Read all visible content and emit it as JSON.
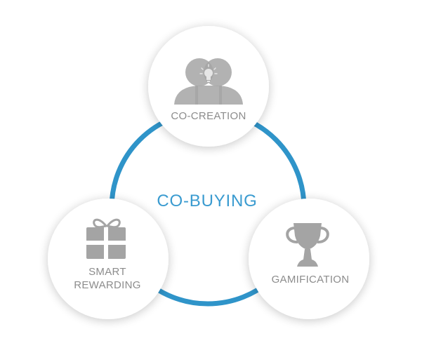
{
  "center": {
    "label": "CO-BUYING"
  },
  "nodes": [
    {
      "id": "co-creation",
      "label_lines": [
        "CO-CREATION"
      ],
      "icon": "people-lightbulb-icon"
    },
    {
      "id": "smart-rewarding",
      "label_lines": [
        "SMART",
        "REWARDING"
      ],
      "icon": "gift-icon"
    },
    {
      "id": "gamification",
      "label_lines": [
        "GAMIFICATION"
      ],
      "icon": "trophy-icon"
    }
  ],
  "colors": {
    "ring": "#2f94c9",
    "node_fill": "#ffffff",
    "icon": "#a4a4a4",
    "label": "#8c8c8c",
    "center_label": "#3a9bd0"
  }
}
